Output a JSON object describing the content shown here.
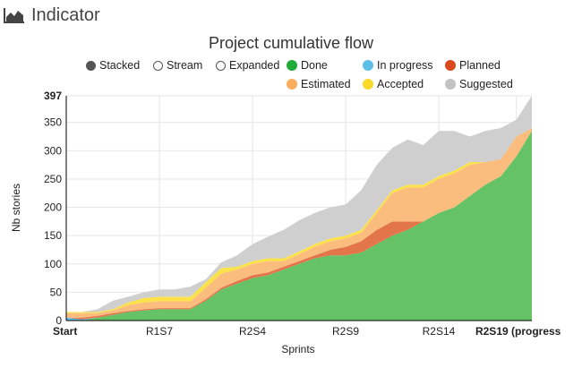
{
  "header": {
    "title": "Indicator",
    "icon": "area-chart-icon"
  },
  "legend": {
    "modes": [
      {
        "label": "Stacked",
        "checked": true
      },
      {
        "label": "Stream",
        "checked": false
      },
      {
        "label": "Expanded",
        "checked": false
      }
    ],
    "series_order": [
      "Done",
      "In progress",
      "Planned",
      "Estimated",
      "Accepted",
      "Suggested"
    ]
  },
  "chart_data": {
    "type": "area",
    "stacked": true,
    "title": "Project cumulative flow",
    "xlabel": "Sprints",
    "ylabel": "Nb stories",
    "ylim": [
      0,
      397
    ],
    "yticks": [
      0,
      50,
      100,
      150,
      200,
      250,
      300,
      350,
      397
    ],
    "xticks": [
      {
        "index": 0,
        "label": "Start",
        "bold": true
      },
      {
        "index": 6,
        "label": "R1S7",
        "bold": false
      },
      {
        "index": 12,
        "label": "R2S4",
        "bold": false
      },
      {
        "index": 18,
        "label": "R2S9",
        "bold": false
      },
      {
        "index": 24,
        "label": "R2S14",
        "bold": false
      },
      {
        "index": 29,
        "label": "R2S19 (progress",
        "bold": true
      }
    ],
    "x_count": 31,
    "grid": true,
    "series": [
      {
        "name": "Done",
        "color": "#66c266",
        "values": [
          0,
          0,
          5,
          10,
          15,
          18,
          20,
          20,
          20,
          35,
          55,
          65,
          75,
          80,
          90,
          100,
          110,
          115,
          115,
          120,
          135,
          150,
          160,
          175,
          190,
          200,
          220,
          240,
          255,
          290,
          335
        ]
      },
      {
        "name": "In progress",
        "color": "#5bbfe8",
        "values": [
          5,
          2,
          0,
          0,
          0,
          0,
          0,
          0,
          0,
          0,
          0,
          0,
          0,
          0,
          0,
          0,
          0,
          0,
          0,
          0,
          0,
          0,
          0,
          0,
          0,
          0,
          0,
          0,
          0,
          0,
          0
        ]
      },
      {
        "name": "Planned",
        "color": "#e3754a",
        "values": [
          0,
          3,
          3,
          3,
          2,
          2,
          2,
          2,
          2,
          3,
          3,
          5,
          5,
          5,
          5,
          5,
          5,
          10,
          15,
          20,
          25,
          25,
          15,
          0,
          0,
          0,
          0,
          0,
          0,
          0,
          0
        ]
      },
      {
        "name": "Estimated",
        "color": "#fbbd7e",
        "values": [
          8,
          8,
          5,
          5,
          10,
          12,
          12,
          12,
          12,
          20,
          25,
          20,
          20,
          20,
          10,
          12,
          15,
          15,
          15,
          15,
          30,
          50,
          60,
          60,
          60,
          60,
          55,
          40,
          30,
          35,
          5
        ]
      },
      {
        "name": "Accepted",
        "color": "#fbe14a",
        "values": [
          2,
          2,
          2,
          2,
          5,
          8,
          8,
          8,
          8,
          10,
          10,
          5,
          5,
          5,
          5,
          5,
          5,
          5,
          5,
          5,
          5,
          5,
          5,
          5,
          5,
          5,
          5,
          0,
          0,
          0,
          0
        ]
      },
      {
        "name": "Suggested",
        "color": "#cfcfcf",
        "values": [
          0,
          0,
          5,
          15,
          10,
          10,
          13,
          13,
          18,
          5,
          10,
          20,
          30,
          38,
          50,
          55,
          55,
          55,
          55,
          70,
          80,
          75,
          80,
          70,
          80,
          70,
          45,
          55,
          55,
          30,
          57
        ]
      }
    ]
  }
}
